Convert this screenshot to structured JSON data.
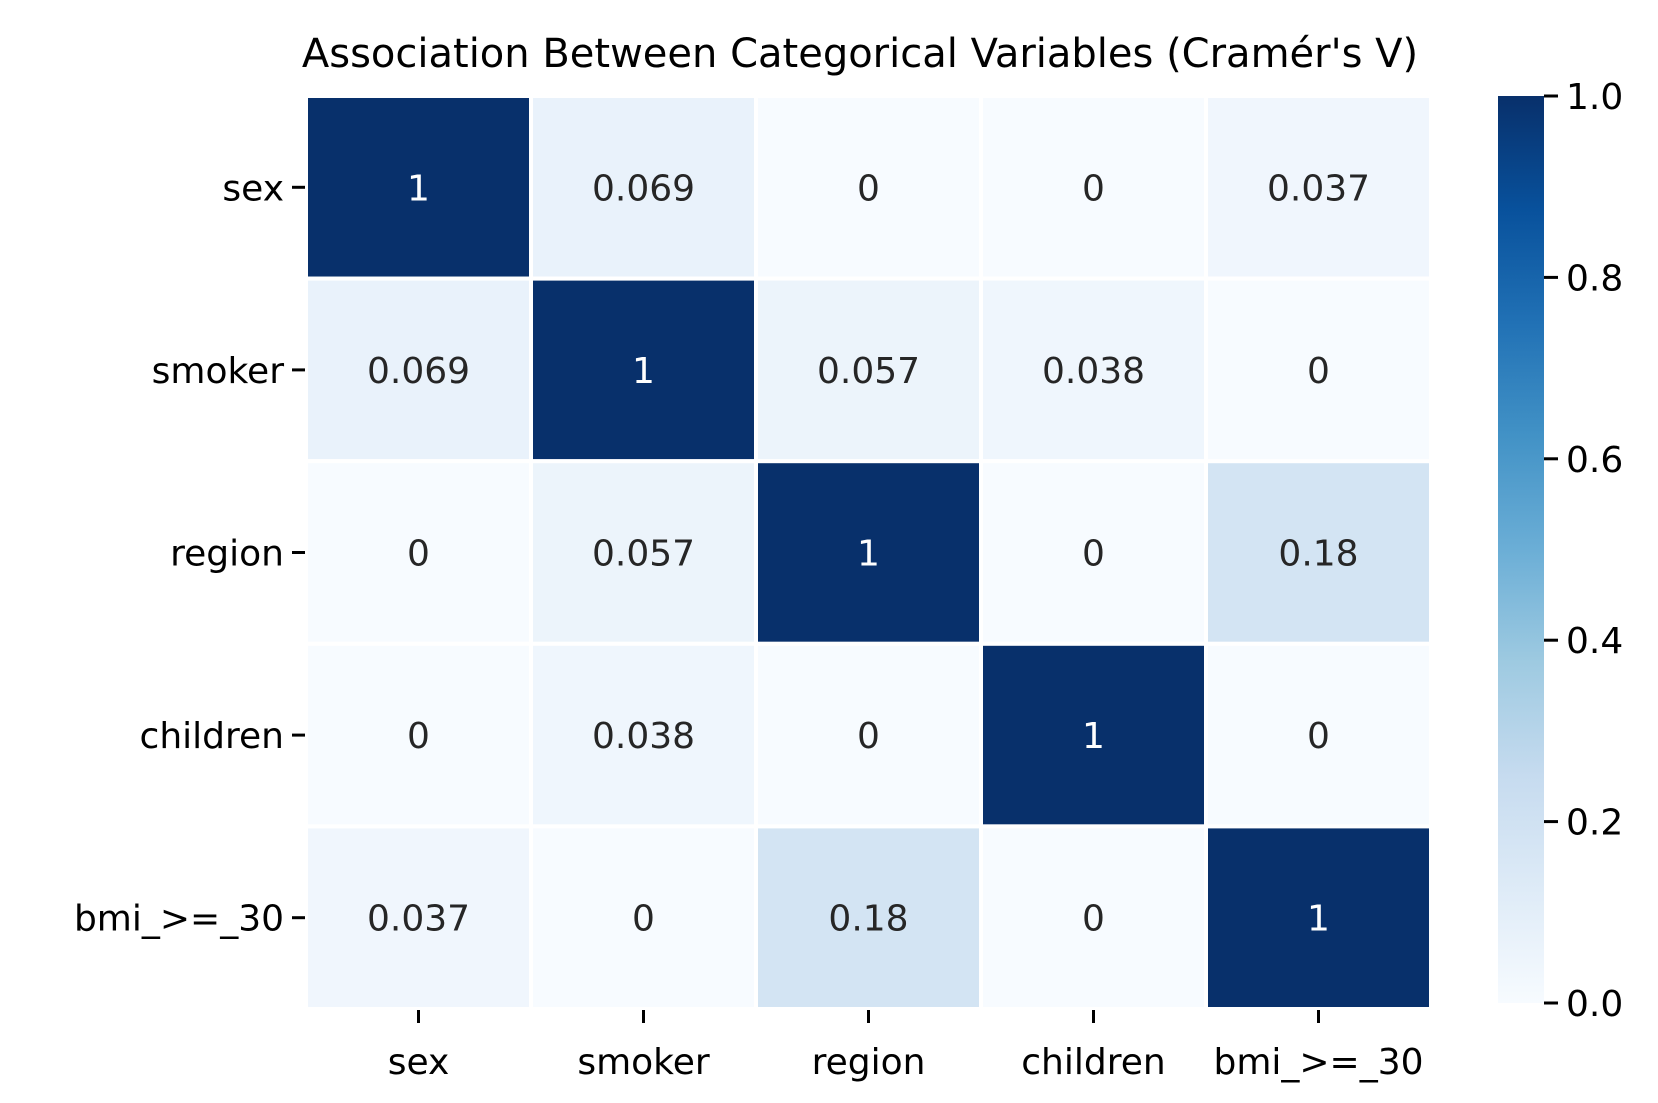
{
  "chart_data": {
    "type": "heatmap",
    "title": "Association Between Categorical Variables (Cramér's V)",
    "rows": [
      "sex",
      "smoker",
      "region",
      "children",
      "bmi_>=_30"
    ],
    "columns": [
      "sex",
      "smoker",
      "region",
      "children",
      "bmi_>=_30"
    ],
    "values": [
      [
        1,
        0.069,
        0,
        0,
        0.037
      ],
      [
        0.069,
        1,
        0.057,
        0.038,
        0
      ],
      [
        0,
        0.057,
        1,
        0,
        0.18
      ],
      [
        0,
        0.038,
        0,
        1,
        0
      ],
      [
        0.037,
        0,
        0.18,
        0,
        1
      ]
    ],
    "labels": [
      [
        "1",
        "0.069",
        "0",
        "0",
        "0.037"
      ],
      [
        "0.069",
        "1",
        "0.057",
        "0.038",
        "0"
      ],
      [
        "0",
        "0.057",
        "1",
        "0",
        "0.18"
      ],
      [
        "0",
        "0.038",
        "0",
        "1",
        "0"
      ],
      [
        "0.037",
        "0",
        "0.18",
        "0",
        "1"
      ]
    ],
    "colorbar": {
      "range": [
        0,
        1
      ],
      "ticks": [
        "0.0",
        "0.2",
        "0.4",
        "0.6",
        "0.8",
        "1.0"
      ],
      "colormap": "Blues"
    },
    "xlabel": "",
    "ylabel": ""
  }
}
